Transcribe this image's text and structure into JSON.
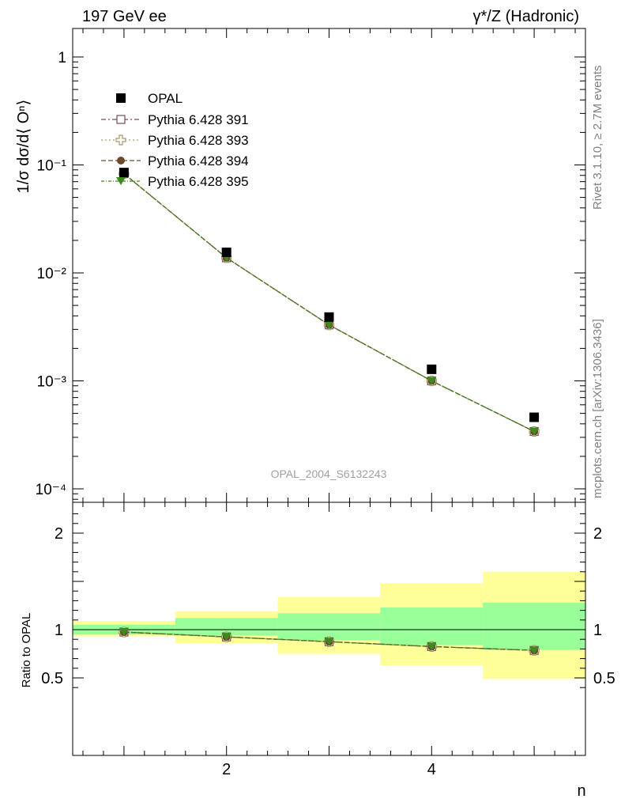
{
  "header": {
    "left": "197 GeV ee",
    "right": "γ*/Z (Hadronic)"
  },
  "side_labels": {
    "rivet": "Rivet 3.1.10, ≥ 2.7M events",
    "mcplots": "mcplots.cern.ch [arXiv:1306.3436]"
  },
  "colors": {
    "opal": "#000000",
    "p391": "#7b4a5a",
    "p393": "#a89a68",
    "p394": "#6b4a2a",
    "p395": "#3f8a1e",
    "band_stat": "#99ff99",
    "band_total": "#ffff99"
  },
  "chart_data": [
    {
      "type": "scatter",
      "title": "",
      "watermark": "OPAL_2004_S6132243",
      "ylabel": "1/σ dσ/d⟨ Oⁿ⟩",
      "xlabel": "n",
      "yscale": "log",
      "xlim": [
        0.5,
        5.5
      ],
      "ylim": [
        0.0001,
        1
      ],
      "ytick_labels": [
        "10⁻⁴",
        "10⁻³",
        "10⁻²",
        "10⁻¹",
        "1"
      ],
      "legend_position": "top-left",
      "x": [
        1,
        2,
        3,
        4,
        5
      ],
      "series": [
        {
          "name": "OPAL",
          "values": [
            0.085,
            0.0155,
            0.0039,
            0.00128,
            0.00046
          ]
        },
        {
          "name": "Pythia 6.428 391",
          "values": [
            0.083,
            0.0138,
            0.0033,
            0.001,
            0.00034
          ]
        },
        {
          "name": "Pythia 6.428 393",
          "values": [
            0.083,
            0.0138,
            0.0033,
            0.001,
            0.00034
          ]
        },
        {
          "name": "Pythia 6.428 394",
          "values": [
            0.083,
            0.0138,
            0.0033,
            0.001,
            0.00034
          ]
        },
        {
          "name": "Pythia 6.428 395",
          "values": [
            0.083,
            0.0138,
            0.0033,
            0.001,
            0.00034
          ]
        }
      ]
    },
    {
      "type": "line",
      "ylabel": "Ratio to OPAL",
      "xlabel": "n",
      "xlim": [
        0.5,
        5.5
      ],
      "ylim": [
        0.35,
        2.25
      ],
      "x_ticks": [
        2,
        4
      ],
      "x_tick_labels": [
        "2",
        "4"
      ],
      "y_ticks": [
        0.5,
        1,
        2
      ],
      "y_tick_labels": [
        "0.5",
        "1",
        "2"
      ],
      "bins": [
        [
          0.5,
          1.5
        ],
        [
          1.5,
          2.5
        ],
        [
          2.5,
          3.5
        ],
        [
          3.5,
          4.5
        ],
        [
          4.5,
          5.5
        ]
      ],
      "stat_band": [
        [
          0.95,
          1.05
        ],
        [
          0.94,
          1.12
        ],
        [
          0.89,
          1.17
        ],
        [
          0.84,
          1.23
        ],
        [
          0.79,
          1.28
        ]
      ],
      "total_band": [
        [
          0.93,
          1.09
        ],
        [
          0.86,
          1.19
        ],
        [
          0.75,
          1.34
        ],
        [
          0.63,
          1.48
        ],
        [
          0.49,
          1.6
        ]
      ],
      "x": [
        1,
        2,
        3,
        4,
        5
      ],
      "series": [
        {
          "name": "Pythia 6.428 391",
          "values": [
            0.975,
            0.925,
            0.875,
            0.825,
            0.785
          ]
        },
        {
          "name": "Pythia 6.428 393",
          "values": [
            0.975,
            0.925,
            0.875,
            0.825,
            0.785
          ]
        },
        {
          "name": "Pythia 6.428 394",
          "values": [
            0.975,
            0.925,
            0.875,
            0.825,
            0.785
          ]
        },
        {
          "name": "Pythia 6.428 395",
          "values": [
            0.975,
            0.925,
            0.875,
            0.825,
            0.785
          ]
        }
      ]
    }
  ]
}
